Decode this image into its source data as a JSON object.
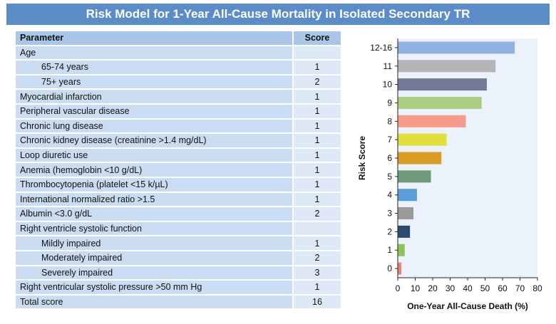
{
  "title": "Risk Model for 1-Year All-Cause Mortality in Isolated Secondary TR",
  "table": {
    "headers": {
      "parameter": "Parameter",
      "score": "Score"
    },
    "rows": [
      {
        "label": "Age",
        "score": "",
        "indent": false
      },
      {
        "label": "65-74 years",
        "score": "1",
        "indent": true
      },
      {
        "label": "75+ years",
        "score": "2",
        "indent": true
      },
      {
        "label": "Myocardial infarction",
        "score": "1",
        "indent": false
      },
      {
        "label": "Peripheral vascular disease",
        "score": "1",
        "indent": false
      },
      {
        "label": "Chronic lung disease",
        "score": "1",
        "indent": false
      },
      {
        "label": "Chronic kidney disease (creatinine >1.4 mg/dL)",
        "score": "1",
        "indent": false
      },
      {
        "label": "Loop diuretic use",
        "score": "1",
        "indent": false
      },
      {
        "label": "Anemia (hemoglobin <10 g/dL)",
        "score": "1",
        "indent": false
      },
      {
        "label": "Thrombocytopenia (platelet <15 k/µL)",
        "score": "1",
        "indent": false
      },
      {
        "label": "International normalized ratio >1.5",
        "score": "1",
        "indent": false
      },
      {
        "label": "Albumin <3.0 g/dL",
        "score": "2",
        "indent": false
      },
      {
        "label": "Right ventricle systolic function",
        "score": "",
        "indent": false
      },
      {
        "label": "Mildly impaired",
        "score": "1",
        "indent": true
      },
      {
        "label": "Moderately impaired",
        "score": "2",
        "indent": true
      },
      {
        "label": "Severely impaired",
        "score": "3",
        "indent": true
      },
      {
        "label": "Right ventricular systolic pressure >50 mm Hg",
        "score": "1",
        "indent": false
      },
      {
        "label": "Total score",
        "score": "16",
        "indent": false
      }
    ]
  },
  "chart_data": {
    "type": "bar",
    "orientation": "horizontal",
    "categories": [
      "12-16",
      "11",
      "10",
      "9",
      "8",
      "7",
      "6",
      "5",
      "4",
      "3",
      "2",
      "1",
      "0"
    ],
    "values": [
      67,
      56,
      51,
      48,
      39,
      28,
      25,
      19,
      11,
      9,
      7,
      4,
      2
    ],
    "colors": [
      "#8fb4e3",
      "#b4b4b4",
      "#727a96",
      "#a8cf84",
      "#f69a8c",
      "#dfe03c",
      "#d99a26",
      "#6f9a7e",
      "#5a9fd8",
      "#9a9a9a",
      "#2e4a72",
      "#8ac45a",
      "#ef7f72"
    ],
    "xlabel": "One-Year All-Cause Death (%)",
    "ylabel": "Risk Score",
    "xlim": [
      0,
      80
    ],
    "xticks": [
      "0",
      "10",
      "20",
      "30",
      "40",
      "50",
      "60",
      "70",
      "80"
    ],
    "plot_background": "#ebf2fb"
  }
}
